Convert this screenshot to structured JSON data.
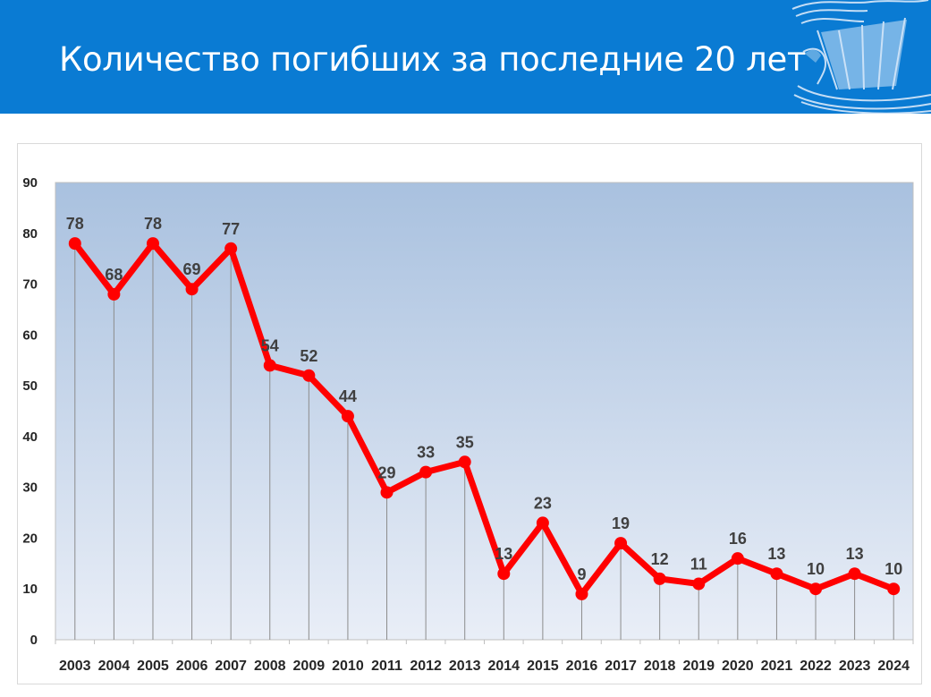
{
  "header": {
    "title": "Количество погибших за последние 20 лет",
    "background_color": "#0a7bd3",
    "logo_icon": "viking-ship-logo"
  },
  "chart_data": {
    "type": "line",
    "title": "",
    "xlabel": "",
    "ylabel": "",
    "x": [
      "2003",
      "2004",
      "2005",
      "2006",
      "2007",
      "2008",
      "2009",
      "2010",
      "2011",
      "2012",
      "2013",
      "2014",
      "2015",
      "2016",
      "2017",
      "2018",
      "2019",
      "2020",
      "2021",
      "2022",
      "2023",
      "2024"
    ],
    "series": [
      {
        "values": [
          78,
          68,
          78,
          69,
          77,
          54,
          52,
          44,
          29,
          33,
          35,
          13,
          23,
          9,
          19,
          12,
          11,
          16,
          13,
          10,
          13,
          10
        ],
        "color": "#ff0000"
      }
    ],
    "ylim": [
      0,
      90
    ],
    "yticks": [
      "0",
      "10",
      "20",
      "30",
      "40",
      "50",
      "60",
      "70",
      "80",
      "90"
    ],
    "data_labels": true,
    "drop_lines": true,
    "grid": false,
    "legend": "none",
    "plot_background": [
      "#a9c1df",
      "#e9eef7"
    ]
  }
}
